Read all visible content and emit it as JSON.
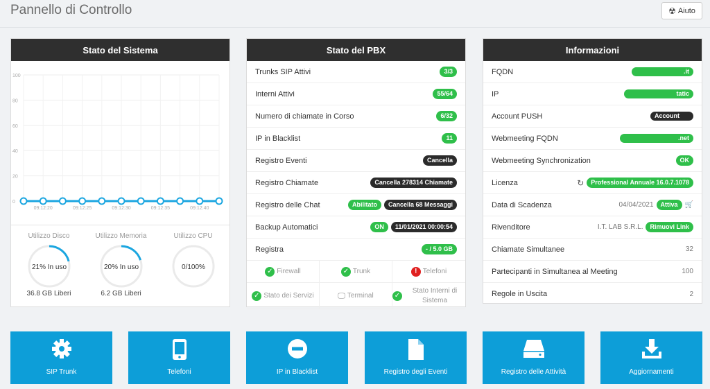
{
  "header": {
    "title": "Pannello di Controllo",
    "help_label": "Aiuto"
  },
  "system": {
    "title": "Stato del Sistema",
    "chart_data": {
      "type": "line",
      "title": "",
      "ylim": [
        0,
        100
      ],
      "y_ticks": [
        "100",
        "80",
        "60",
        "40",
        "20",
        "0"
      ],
      "x": [
        "",
        "09:12:20",
        "",
        "09:12:25",
        "",
        "09:12:30",
        "",
        "09:12:35",
        "",
        "09:12:40",
        ""
      ],
      "x_labels": [
        "09:12:20",
        "09:12:25",
        "09:12:30",
        "09:12:35",
        "09:12:40"
      ],
      "series": [
        {
          "values": [
            0,
            0,
            0,
            0,
            0,
            0,
            0,
            0,
            0,
            0,
            0
          ],
          "color": "#1ba6e0"
        }
      ],
      "grid": true
    },
    "disk": {
      "label": "Utilizzo Disco",
      "center": "21% In uso",
      "percent": 21,
      "free": "36.8 GB Liberi"
    },
    "memory": {
      "label": "Utilizzo Memoria",
      "center": "20% In uso",
      "percent": 20,
      "free": "6.2 GB Liberi"
    },
    "cpu": {
      "label": "Utilizzo CPU",
      "center": "0/100%",
      "percent": 0
    }
  },
  "pbx": {
    "title": "Stato del PBX",
    "rows": [
      {
        "label": "Trunks SIP Attivi",
        "badges": [
          {
            "text": "3/3",
            "color": "green"
          }
        ]
      },
      {
        "label": "Interni Attivi",
        "badges": [
          {
            "text": "55/64",
            "color": "green"
          }
        ]
      },
      {
        "label": "Numero di chiamate in Corso",
        "badges": [
          {
            "text": "6/32",
            "color": "green"
          }
        ]
      },
      {
        "label": "IP in Blacklist",
        "badges": [
          {
            "text": "11",
            "color": "green"
          }
        ]
      },
      {
        "label": "Registro Eventi",
        "badges": [
          {
            "text": "Cancella",
            "color": "dark"
          }
        ]
      },
      {
        "label": "Registro Chiamate",
        "badges": [
          {
            "text": "Cancella 278314 Chiamate",
            "color": "dark"
          }
        ]
      },
      {
        "label": "Registro delle Chat",
        "badges": [
          {
            "text": "Abilitato",
            "color": "green"
          },
          {
            "text": "Cancella 68 Messaggi",
            "color": "dark"
          }
        ]
      },
      {
        "label": "Backup Automatici",
        "badges": [
          {
            "text": "ON",
            "color": "green"
          },
          {
            "text": "11/01/2021 00:00:54",
            "color": "dark"
          }
        ]
      },
      {
        "label": "Registra",
        "badges": [
          {
            "text": "- / 5.0 GB",
            "color": "green"
          }
        ]
      }
    ],
    "services": [
      {
        "label": "Firewall",
        "status": "ok"
      },
      {
        "label": "Trunk",
        "status": "ok"
      },
      {
        "label": "Telefoni",
        "status": "error"
      },
      {
        "label": "Stato dei Servizi",
        "status": "ok"
      },
      {
        "label": "Terminal",
        "status": "monitor"
      },
      {
        "label": "Stato Interni di Sistema",
        "status": "ok"
      }
    ]
  },
  "info": {
    "title": "Informazioni",
    "fqdn": {
      "label": "FQDN",
      "value": ".it"
    },
    "ip": {
      "label": "IP",
      "value": "tatic"
    },
    "push": {
      "label": "Account PUSH",
      "value": "Account"
    },
    "webfqdn": {
      "label": "Webmeeting FQDN",
      "value": ".net"
    },
    "websync": {
      "label": "Webmeeting Synchronization",
      "value": "OK"
    },
    "license": {
      "label": "Licenza",
      "value": "Professional Annuale 16.0.7.1078"
    },
    "expiry": {
      "label": "Data di Scadenza",
      "date": "04/04/2021",
      "status": "Attiva"
    },
    "reseller": {
      "label": "Rivenditore",
      "name": "I.T. LAB S.R.L.",
      "action": "Rimuovi Link"
    },
    "calls": {
      "label": "Chiamate Simultanee",
      "value": "32"
    },
    "meeting": {
      "label": "Partecipanti in Simultanea al Meeting",
      "value": "100"
    },
    "rules": {
      "label": "Regole in Uscita",
      "value": "2"
    }
  },
  "tiles": [
    {
      "label": "SIP Trunk",
      "icon": "gear-icon"
    },
    {
      "label": "Telefoni",
      "icon": "phone-icon"
    },
    {
      "label": "IP in Blacklist",
      "icon": "minus-circle-icon"
    },
    {
      "label": "Registro degli Eventi",
      "icon": "file-icon"
    },
    {
      "label": "Registro delle Attività",
      "icon": "hard-drive-icon"
    },
    {
      "label": "Aggiornamenti",
      "icon": "download-icon"
    }
  ],
  "colors": {
    "accent": "#0d9ed8",
    "green": "#2fbf4a",
    "dark": "#2b2b2b",
    "header": "#2f2f2f",
    "error": "#e02020"
  }
}
